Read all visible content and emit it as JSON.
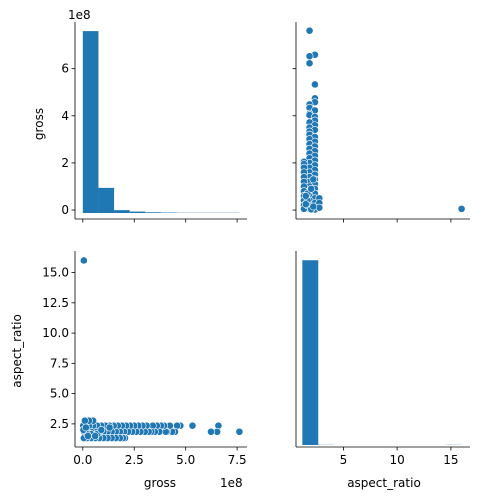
{
  "chart_data": {
    "type": "scatter",
    "kind": "pairplot",
    "variables": [
      "gross",
      "aspect_ratio"
    ],
    "accent_color": "#1f77b4",
    "grid": false,
    "legend": "none",
    "gross_axis": {
      "label": "gross",
      "offset_text": "1e8",
      "ticks": [
        0,
        2,
        4,
        6
      ],
      "tick_labels": [
        "0",
        "2",
        "4",
        "6"
      ],
      "bottom_ticks": [
        0,
        2.5,
        5.0,
        7.5
      ],
      "bottom_tick_labels": [
        "0.0",
        "2.5",
        "5.0",
        "7.5"
      ],
      "unit_scale": 100000000.0,
      "range": [
        -0.38,
        7.98
      ]
    },
    "aspect_axis": {
      "label": "aspect_ratio",
      "ticks": [
        2.5,
        5.0,
        7.5,
        10.0,
        12.5,
        15.0
      ],
      "tick_labels": [
        "2.5",
        "5.0",
        "7.5",
        "10.0",
        "12.5",
        "15.0"
      ],
      "bottom_ticks": [
        5,
        10,
        15
      ],
      "bottom_tick_labels": [
        "5",
        "10",
        "15"
      ],
      "range": [
        0.59,
        16.78
      ]
    },
    "gross_histogram": {
      "bin_edges": [
        0,
        0.76,
        1.52,
        2.28,
        3.04,
        3.8,
        4.56,
        5.32,
        6.08,
        6.84,
        7.61
      ],
      "counts": [
        760,
        105,
        12,
        6,
        3,
        2,
        1,
        1,
        1,
        1
      ]
    },
    "aspect_histogram": {
      "bin_edges": [
        1.18,
        2.66,
        4.14,
        5.62,
        7.1,
        8.58,
        10.06,
        11.54,
        13.02,
        14.5,
        16.0
      ],
      "counts": [
        1000,
        1,
        0,
        0,
        0,
        0,
        0,
        0,
        0,
        1
      ]
    },
    "scatter_points": [
      [
        0.05,
        16.0
      ],
      [
        7.61,
        1.85
      ],
      [
        6.59,
        2.35
      ],
      [
        6.53,
        1.85
      ],
      [
        6.23,
        1.85
      ],
      [
        5.33,
        2.35
      ],
      [
        4.74,
        2.35
      ],
      [
        4.58,
        2.35
      ],
      [
        4.48,
        1.85
      ],
      [
        4.34,
        1.85
      ],
      [
        4.23,
        2.35
      ],
      [
        4.09,
        1.85
      ],
      [
        4.03,
        1.85
      ],
      [
        3.95,
        2.35
      ],
      [
        3.8,
        2.35
      ],
      [
        3.72,
        1.85
      ],
      [
        3.6,
        2.35
      ],
      [
        3.5,
        1.85
      ],
      [
        3.4,
        2.35
      ],
      [
        3.33,
        1.85
      ],
      [
        3.2,
        1.85
      ],
      [
        3.1,
        2.35
      ],
      [
        3.01,
        1.85
      ],
      [
        2.9,
        2.35
      ],
      [
        2.8,
        1.85
      ],
      [
        2.7,
        2.35
      ],
      [
        2.6,
        1.85
      ],
      [
        2.5,
        2.35
      ],
      [
        2.4,
        1.85
      ],
      [
        2.3,
        2.35
      ],
      [
        2.2,
        1.85
      ],
      [
        2.1,
        2.35
      ],
      [
        2.0,
        1.85
      ],
      [
        1.9,
        2.35
      ],
      [
        1.8,
        1.85
      ],
      [
        1.7,
        2.35
      ],
      [
        1.6,
        1.85
      ],
      [
        1.5,
        2.35
      ],
      [
        1.4,
        1.85
      ],
      [
        1.3,
        2.35
      ],
      [
        1.2,
        1.85
      ],
      [
        1.1,
        2.35
      ],
      [
        1.0,
        1.85
      ],
      [
        0.9,
        2.35
      ],
      [
        0.8,
        1.85
      ],
      [
        0.7,
        2.35
      ],
      [
        0.6,
        1.85
      ],
      [
        0.5,
        2.35
      ],
      [
        0.4,
        1.85
      ],
      [
        0.3,
        2.35
      ],
      [
        0.2,
        1.85
      ],
      [
        0.1,
        2.35
      ],
      [
        0.05,
        1.85
      ],
      [
        0.02,
        2.35
      ],
      [
        2.05,
        1.33
      ],
      [
        1.95,
        1.33
      ],
      [
        1.8,
        1.33
      ],
      [
        1.6,
        1.33
      ],
      [
        1.4,
        1.33
      ],
      [
        1.2,
        1.33
      ],
      [
        1.0,
        1.33
      ],
      [
        0.8,
        1.33
      ],
      [
        0.6,
        1.33
      ],
      [
        0.4,
        1.33
      ],
      [
        0.2,
        1.33
      ],
      [
        0.05,
        1.33
      ],
      [
        0.5,
        2.76
      ],
      [
        0.3,
        2.76
      ],
      [
        0.1,
        2.76
      ],
      [
        0.7,
        1.66
      ],
      [
        0.4,
        1.66
      ],
      [
        0.2,
        1.66
      ],
      [
        0.03,
        2.0
      ],
      [
        0.15,
        2.2
      ],
      [
        1.3,
        2.2
      ],
      [
        0.9,
        2.0
      ],
      [
        0.6,
        1.5
      ],
      [
        0.25,
        1.5
      ]
    ]
  }
}
